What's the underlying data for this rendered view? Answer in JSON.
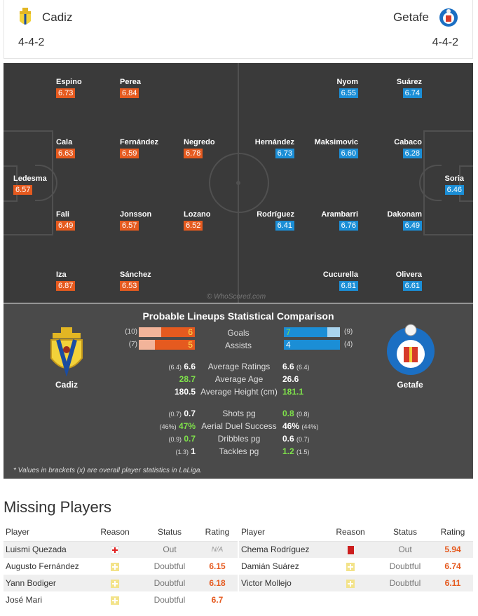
{
  "header": {
    "home": {
      "name": "Cadiz",
      "formation": "4-4-2"
    },
    "away": {
      "name": "Getafe",
      "formation": "4-4-2"
    }
  },
  "pitch": {
    "home_players": [
      {
        "name": "Espino",
        "rating": "6.73"
      },
      {
        "name": "Perea",
        "rating": "6.84"
      },
      {
        "name": "Cala",
        "rating": "6.63"
      },
      {
        "name": "Fernández",
        "rating": "6.59"
      },
      {
        "name": "Negredo",
        "rating": "6.78"
      },
      {
        "name": "Ledesma",
        "rating": "6.57"
      },
      {
        "name": "Fali",
        "rating": "6.49"
      },
      {
        "name": "Jonsson",
        "rating": "6.57"
      },
      {
        "name": "Lozano",
        "rating": "6.52"
      },
      {
        "name": "Iza",
        "rating": "6.87"
      },
      {
        "name": "Sánchez",
        "rating": "6.53"
      }
    ],
    "away_players": [
      {
        "name": "Nyom",
        "rating": "6.55"
      },
      {
        "name": "Suárez",
        "rating": "6.74"
      },
      {
        "name": "Hernández",
        "rating": "6.73"
      },
      {
        "name": "Maksimovic",
        "rating": "6.60"
      },
      {
        "name": "Cabaco",
        "rating": "6.28"
      },
      {
        "name": "Soria",
        "rating": "6.46"
      },
      {
        "name": "Rodríguez",
        "rating": "6.41"
      },
      {
        "name": "Arambarri",
        "rating": "6.76"
      },
      {
        "name": "Dakonam",
        "rating": "6.49"
      },
      {
        "name": "Cucurella",
        "rating": "6.81"
      },
      {
        "name": "Olivera",
        "rating": "6.61"
      }
    ],
    "watermark": "© WhoScored.com"
  },
  "comparison": {
    "title": "Probable Lineups Statistical Comparison",
    "home_team": "Cadiz",
    "away_team": "Getafe",
    "bars": [
      {
        "label": "Goals",
        "home": "6",
        "home_overall": "(10)",
        "home_fraction": 0.6,
        "away": "7",
        "away_overall": "(9)",
        "away_fraction": 0.78
      },
      {
        "label": "Assists",
        "home": "5",
        "home_overall": "(7)",
        "home_fraction": 0.71,
        "away": "4",
        "away_overall": "(4)",
        "away_fraction": 1.0
      }
    ],
    "stats": [
      {
        "label": "Average Ratings",
        "home_overall": "(6.4)",
        "home": "6.6",
        "away": "6.6",
        "away_overall": "(6.4)",
        "better": "none"
      },
      {
        "label": "Average Age",
        "home_overall": "",
        "home": "28.7",
        "away": "26.6",
        "away_overall": "",
        "better": "home"
      },
      {
        "label": "Average Height (cm)",
        "home_overall": "",
        "home": "180.5",
        "away": "181.1",
        "away_overall": "",
        "better": "away"
      },
      {
        "label": "Shots pg",
        "home_overall": "(0.7)",
        "home": "0.7",
        "away": "0.8",
        "away_overall": "(0.8)",
        "better": "away"
      },
      {
        "label": "Aerial Duel Success",
        "home_overall": "(46%)",
        "home": "47%",
        "away": "46%",
        "away_overall": "(44%)",
        "better": "home"
      },
      {
        "label": "Dribbles pg",
        "home_overall": "(0.9)",
        "home": "0.7",
        "away": "0.6",
        "away_overall": "(0.7)",
        "better": "home"
      },
      {
        "label": "Tackles pg",
        "home_overall": "(1.3)",
        "home": "1",
        "away": "1.2",
        "away_overall": "(1.5)",
        "better": "away"
      }
    ],
    "note": "* Values in brackets (x) are overall player statistics in LaLiga."
  },
  "missing": {
    "title": "Missing Players",
    "headers": {
      "player": "Player",
      "reason": "Reason",
      "status": "Status",
      "rating": "Rating"
    },
    "home": [
      {
        "player": "Luismi Quezada",
        "reason": "injury-icon",
        "status": "Out",
        "rating": "N/A"
      },
      {
        "player": "Augusto Fernández",
        "reason": "doubtful-icon",
        "status": "Doubtful",
        "rating": "6.15"
      },
      {
        "player": "Yann Bodiger",
        "reason": "doubtful-icon",
        "status": "Doubtful",
        "rating": "6.18"
      },
      {
        "player": "José Mari",
        "reason": "doubtful-icon",
        "status": "Doubtful",
        "rating": "6.7"
      }
    ],
    "away": [
      {
        "player": "Chema Rodríguez",
        "reason": "red-card-icon",
        "status": "Out",
        "rating": "5.94"
      },
      {
        "player": "Damián Suárez",
        "reason": "doubtful-icon",
        "status": "Doubtful",
        "rating": "6.74"
      },
      {
        "player": "Victor Mollejo",
        "reason": "doubtful-icon",
        "status": "Doubtful",
        "rating": "6.11"
      }
    ]
  },
  "colors": {
    "home": "#e55a1f",
    "away": "#1b8ed6",
    "positive": "#7fe34a"
  }
}
